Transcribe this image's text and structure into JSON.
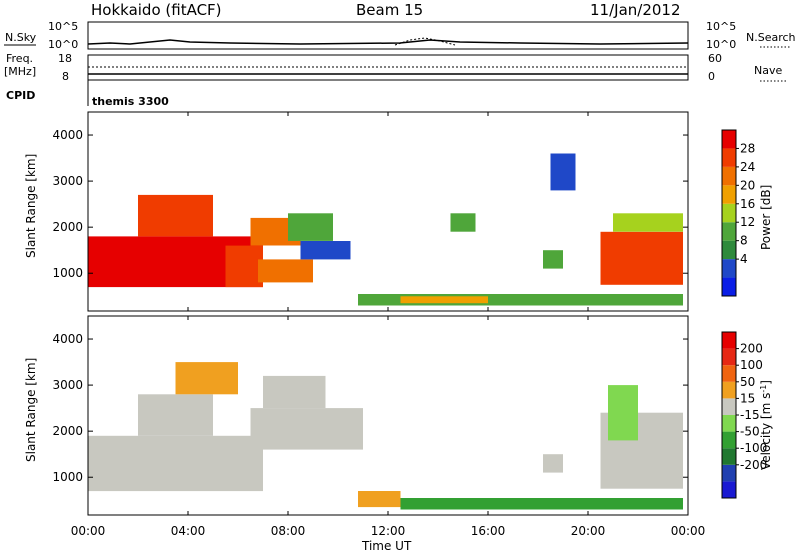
{
  "header": {
    "station": "Hokkaido (fitACF)",
    "beam": "Beam 15",
    "date": "11/Jan/2012"
  },
  "strips": {
    "nsky_label": "N.Sky",
    "nsky_ticks": [
      "10^5",
      "10^0"
    ],
    "nsearch_label": "N.Search",
    "nsearch_ticks": [
      "10^5",
      "10^0"
    ],
    "freq_label_1": "Freq.",
    "freq_label_2": "[MHz]",
    "freq_ticks": [
      "18",
      "8"
    ],
    "nave_label": "Nave",
    "nave_ticks": [
      "60",
      "0"
    ],
    "cpid_label": "CPID",
    "cpid_value": "themis 3300"
  },
  "axes": {
    "ylabel": "Slant Range [km]",
    "xlabel": "Time UT",
    "x_ticks": [
      "00:00",
      "04:00",
      "08:00",
      "12:00",
      "16:00",
      "20:00",
      "00:00"
    ],
    "y_ticks": [
      "4000",
      "3000",
      "2000",
      "1000"
    ]
  },
  "colors": {
    "power": [
      "#0a1ee6",
      "#1f48c8",
      "#2e8a3c",
      "#4fa63a",
      "#a6d21e",
      "#f0a000",
      "#f07000",
      "#f03c00",
      "#e60000"
    ],
    "velocity": [
      "#1a1ad2",
      "#2040b0",
      "#207830",
      "#32a032",
      "#80d850",
      "#c8c8c0",
      "#f0a020",
      "#f06410",
      "#e62814",
      "#e60000"
    ]
  },
  "chart_data": [
    {
      "type": "heatmap",
      "name_in_figure": "Power [dB]",
      "colorbar_label": "Power [dB]",
      "colorbar_ticks": [
        "28",
        "24",
        "20",
        "16",
        "12",
        "8",
        "4"
      ],
      "x_unit": "hours UT",
      "y_unit": "km",
      "xlim": [
        0,
        24
      ],
      "ylim": [
        180,
        4500
      ],
      "regions": [
        {
          "t0": 0.0,
          "t1": 7.0,
          "r0": 700,
          "r1": 1800,
          "level": 8
        },
        {
          "t0": 2.0,
          "t1": 5.0,
          "r0": 1800,
          "r1": 2700,
          "level": 7
        },
        {
          "t0": 5.5,
          "t1": 7.0,
          "r0": 700,
          "r1": 1600,
          "level": 7
        },
        {
          "t0": 6.5,
          "t1": 8.5,
          "r0": 1600,
          "r1": 2200,
          "level": 6
        },
        {
          "t0": 6.8,
          "t1": 9.0,
          "r0": 800,
          "r1": 1300,
          "level": 6
        },
        {
          "t0": 8.0,
          "t1": 9.8,
          "r0": 1700,
          "r1": 2300,
          "level": 3
        },
        {
          "t0": 8.5,
          "t1": 10.5,
          "r0": 1300,
          "r1": 1700,
          "level": 1
        },
        {
          "t0": 10.8,
          "t1": 23.8,
          "r0": 300,
          "r1": 550,
          "level": 3
        },
        {
          "t0": 12.5,
          "t1": 16.0,
          "r0": 350,
          "r1": 500,
          "level": 5
        },
        {
          "t0": 20.5,
          "t1": 23.8,
          "r0": 750,
          "r1": 1900,
          "level": 7
        },
        {
          "t0": 21.0,
          "t1": 23.8,
          "r0": 1900,
          "r1": 2300,
          "level": 4
        },
        {
          "t0": 14.5,
          "t1": 15.5,
          "r0": 1900,
          "r1": 2300,
          "level": 3
        },
        {
          "t0": 18.2,
          "t1": 19.0,
          "r0": 1100,
          "r1": 1500,
          "level": 3
        },
        {
          "t0": 18.5,
          "t1": 19.5,
          "r0": 2800,
          "r1": 3600,
          "level": 1
        }
      ]
    },
    {
      "type": "heatmap",
      "name_in_figure": "Velocity [m s-1]",
      "colorbar_label": "Velocity [m s",
      "colorbar_label_sup": "-1",
      "colorbar_label_end": "]",
      "colorbar_ticks": [
        "200",
        "100",
        "50",
        "15",
        "-15",
        "-50",
        "-100",
        "-200"
      ],
      "x_unit": "hours UT",
      "y_unit": "km",
      "xlim": [
        0,
        24
      ],
      "ylim": [
        180,
        4500
      ],
      "regions": [
        {
          "t0": 0.0,
          "t1": 7.0,
          "r0": 700,
          "r1": 1900,
          "level": 5
        },
        {
          "t0": 2.0,
          "t1": 5.0,
          "r0": 1900,
          "r1": 2800,
          "level": 5
        },
        {
          "t0": 6.5,
          "t1": 11.0,
          "r0": 1600,
          "r1": 2500,
          "level": 5
        },
        {
          "t0": 7.0,
          "t1": 9.5,
          "r0": 2500,
          "r1": 3200,
          "level": 5
        },
        {
          "t0": 10.8,
          "t1": 12.5,
          "r0": 350,
          "r1": 700,
          "level": 6
        },
        {
          "t0": 12.5,
          "t1": 23.8,
          "r0": 300,
          "r1": 550,
          "level": 3
        },
        {
          "t0": 20.5,
          "t1": 23.8,
          "r0": 750,
          "r1": 2400,
          "level": 5
        },
        {
          "t0": 20.8,
          "t1": 22.0,
          "r0": 1800,
          "r1": 3000,
          "level": 4
        },
        {
          "t0": 3.5,
          "t1": 6.0,
          "r0": 2800,
          "r1": 3500,
          "level": 6
        },
        {
          "t0": 18.2,
          "t1": 19.0,
          "r0": 1100,
          "r1": 1500,
          "level": 5
        }
      ]
    }
  ]
}
